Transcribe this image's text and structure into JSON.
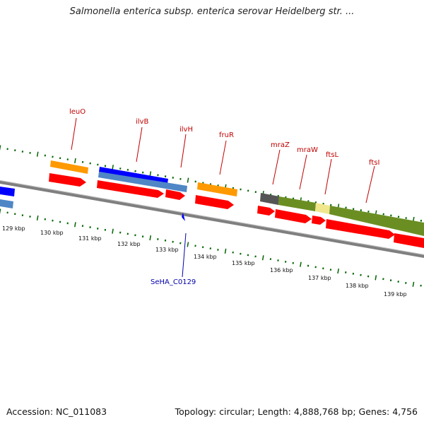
{
  "title": "Salmonella enterica subsp. enterica serovar Heidelberg str. ...",
  "footer": {
    "accession": "Accession: NC_011083",
    "summary": "Topology: circular; Length: 4,888,768 bp; Genes: 4,756"
  },
  "colors": {
    "backbone": "#7f7f7f",
    "gene_red": "#ff0000",
    "gene_orange": "#ff9900",
    "gene_blue": "#0000ff",
    "gene_steelblue": "#4f86c6",
    "gene_olive": "#6b8e23",
    "gene_khaki": "#f0e68c",
    "gene_gray": "#555555",
    "tick_green": "#006400",
    "label_red": "#c00000",
    "label_blue": "#0000aa"
  },
  "scale_labels": [
    "129 kbp",
    "130 kbp",
    "131 kbp",
    "132 kbp",
    "133 kbp",
    "134 kbp",
    "135 kbp",
    "136 kbp",
    "137 kbp",
    "138 kbp",
    "139 kbp"
  ],
  "gene_labels": [
    "leuO",
    "ilvB",
    "ilvH",
    "fruR",
    "mraZ",
    "mraW",
    "ftsL",
    "ftsI"
  ],
  "locus_labels": [
    "SeHA_C0129"
  ]
}
